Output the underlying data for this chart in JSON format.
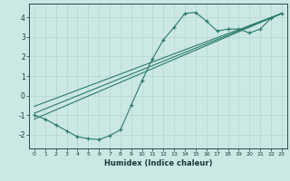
{
  "title": "",
  "xlabel": "Humidex (Indice chaleur)",
  "ylabel": "",
  "bg_color": "#cce8e4",
  "line_color": "#2a7a6a",
  "grid_color": "#b8d8d4",
  "xlim": [
    -0.5,
    23.5
  ],
  "ylim": [
    -2.7,
    4.7
  ],
  "xticks": [
    0,
    1,
    2,
    3,
    4,
    5,
    6,
    7,
    8,
    9,
    10,
    11,
    12,
    13,
    14,
    15,
    16,
    17,
    18,
    19,
    20,
    21,
    22,
    23
  ],
  "yticks": [
    -2,
    -1,
    0,
    1,
    2,
    3,
    4
  ],
  "data_x": [
    0,
    1,
    2,
    3,
    4,
    5,
    6,
    7,
    8,
    9,
    10,
    11,
    12,
    13,
    14,
    15,
    16,
    17,
    18,
    19,
    20,
    21,
    22,
    23
  ],
  "data_y": [
    -1.0,
    -1.2,
    -1.5,
    -1.8,
    -2.1,
    -2.2,
    -2.25,
    -2.05,
    -1.75,
    -0.5,
    0.75,
    1.9,
    2.85,
    3.5,
    4.2,
    4.25,
    3.8,
    3.3,
    3.4,
    3.4,
    3.2,
    3.4,
    3.95,
    4.2
  ],
  "line1_x": [
    0,
    23
  ],
  "line1_y": [
    -0.9,
    4.2
  ],
  "line2_x": [
    0,
    23
  ],
  "line2_y": [
    -0.55,
    4.2
  ],
  "line3_x": [
    0,
    23
  ],
  "line3_y": [
    -1.2,
    4.2
  ]
}
